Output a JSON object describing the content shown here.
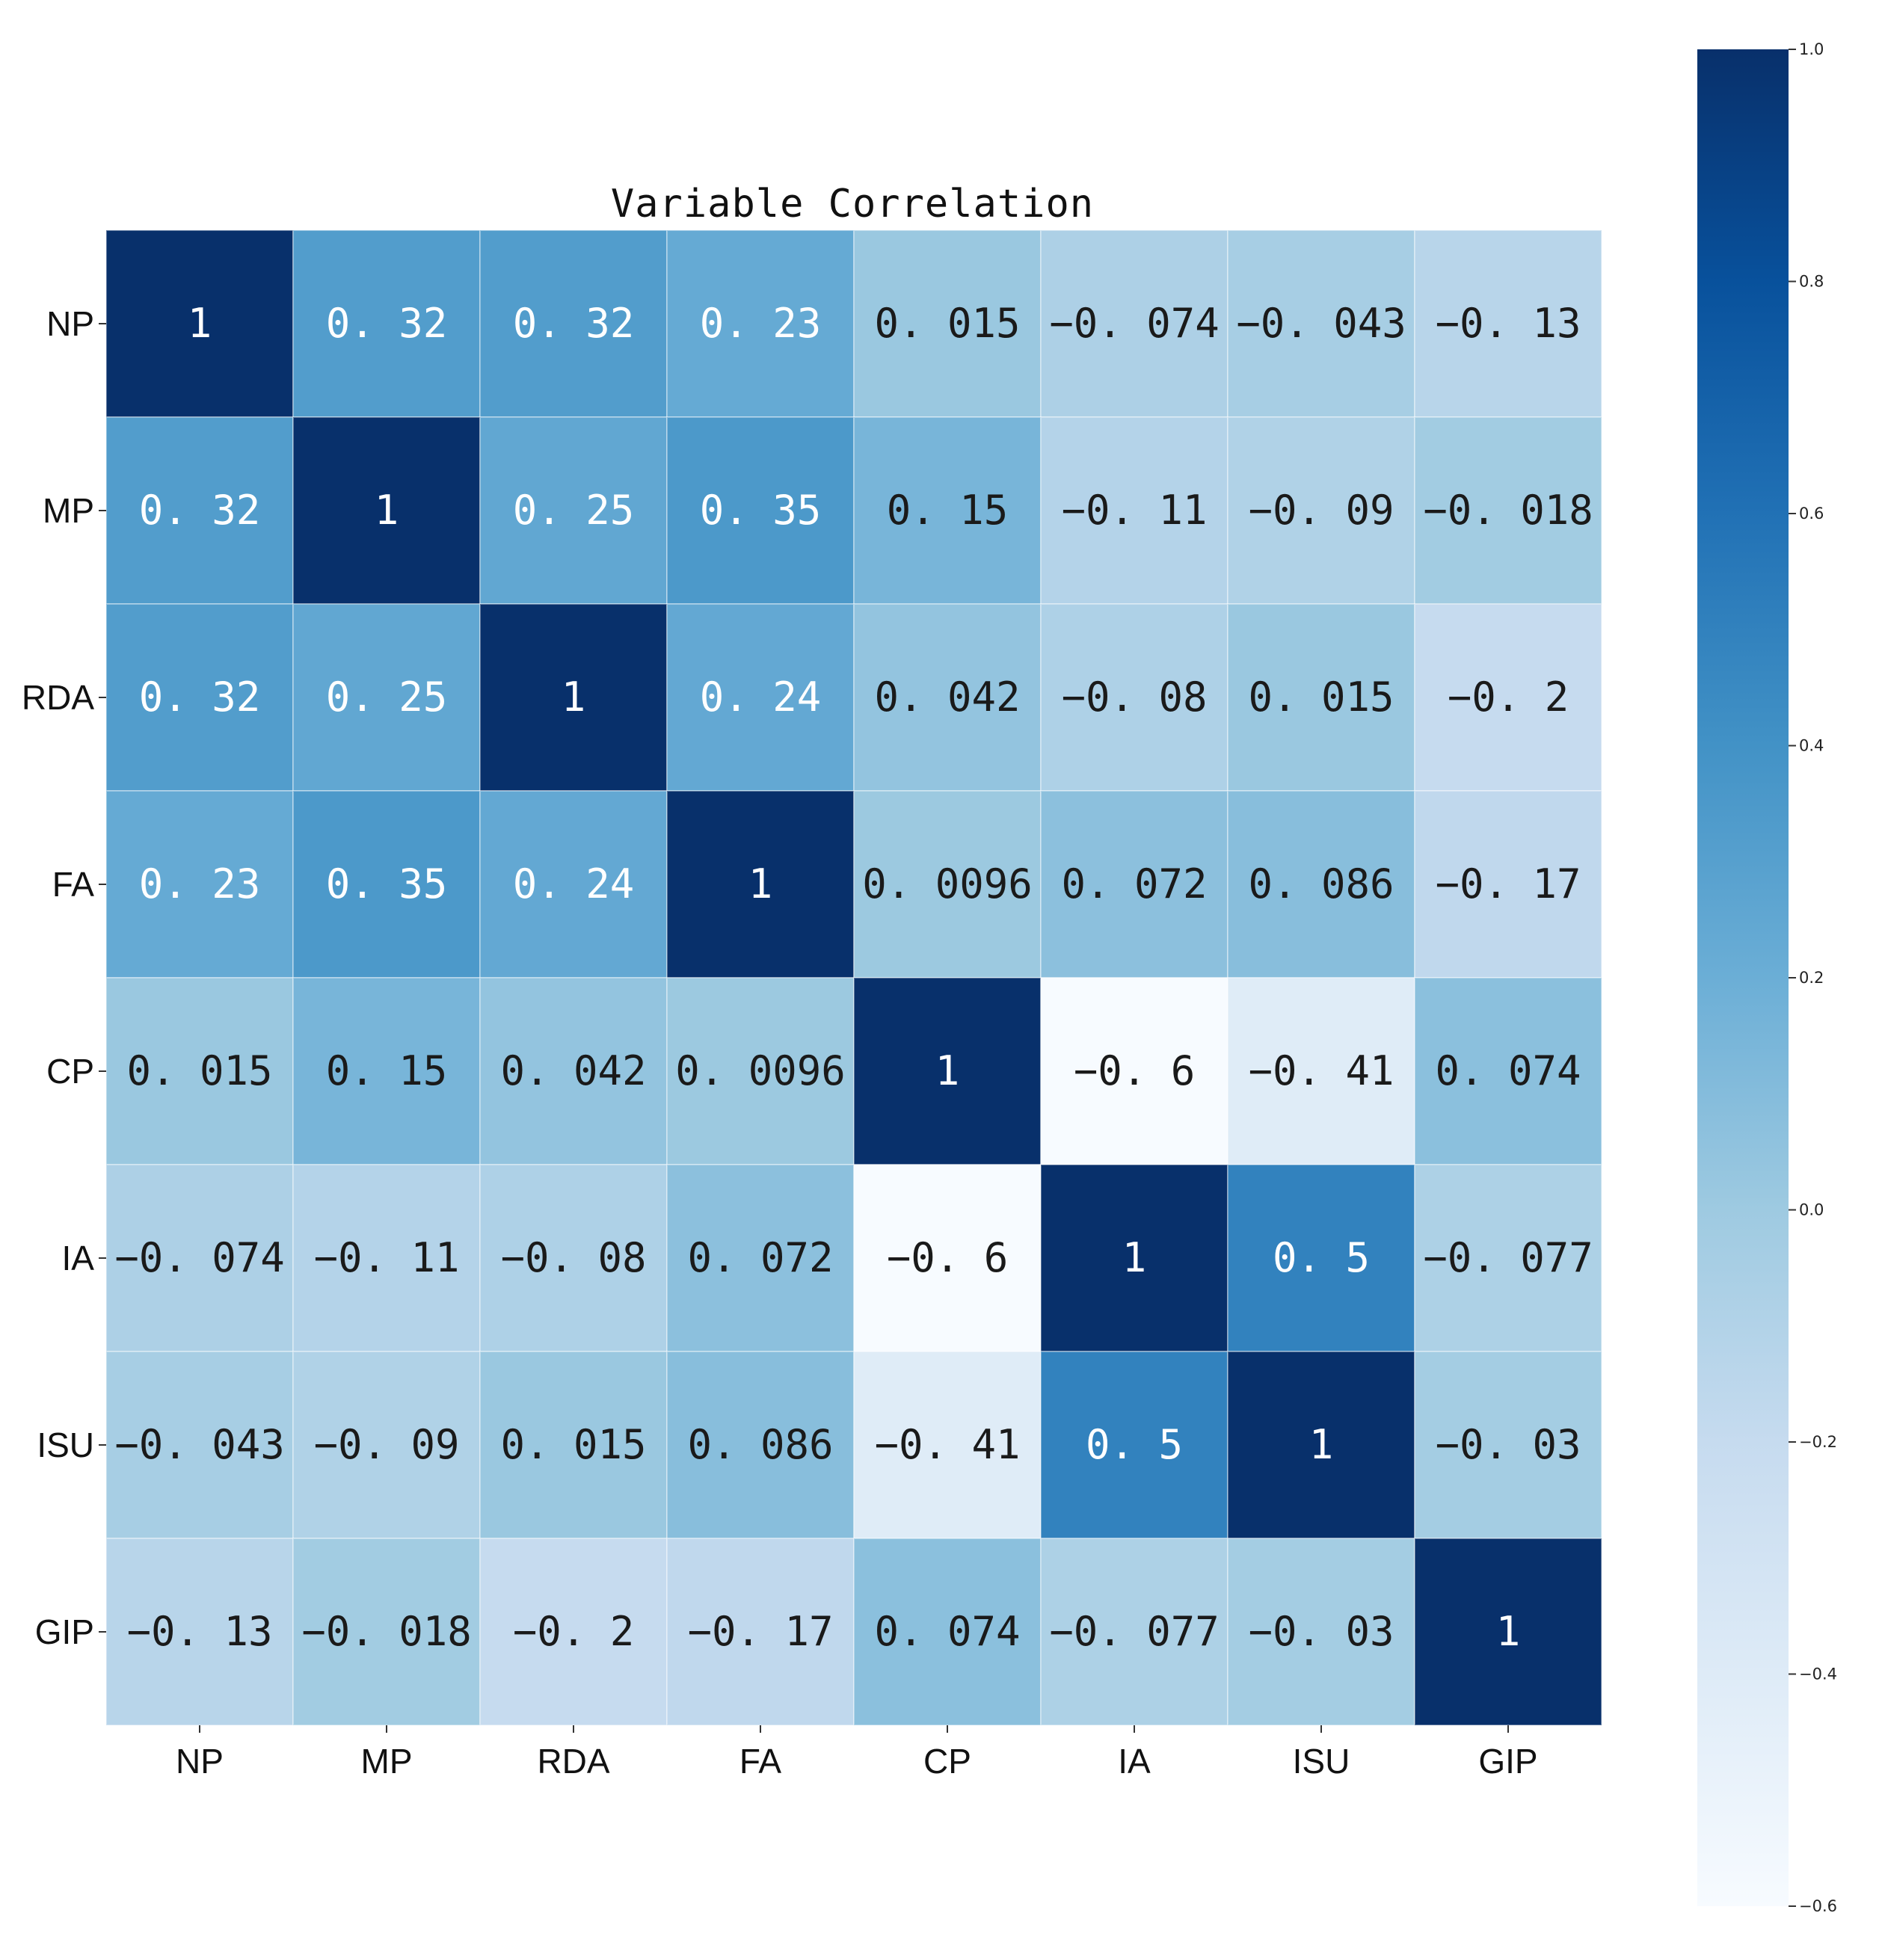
{
  "chart_data": {
    "type": "heatmap",
    "title": "Variable Correlation",
    "row_labels": [
      "NP",
      "MP",
      "RDA",
      "FA",
      "CP",
      "IA",
      "ISU",
      "GIP"
    ],
    "col_labels": [
      "NP",
      "MP",
      "RDA",
      "FA",
      "CP",
      "IA",
      "ISU",
      "GIP"
    ],
    "values": [
      [
        1,
        0.32,
        0.32,
        0.23,
        0.015,
        -0.074,
        -0.043,
        -0.13
      ],
      [
        0.32,
        1,
        0.25,
        0.35,
        0.15,
        -0.11,
        -0.09,
        -0.018
      ],
      [
        0.32,
        0.25,
        1,
        0.24,
        0.042,
        -0.08,
        0.015,
        -0.2
      ],
      [
        0.23,
        0.35,
        0.24,
        1,
        0.0096,
        0.072,
        0.086,
        -0.17
      ],
      [
        0.015,
        0.15,
        0.042,
        0.0096,
        1,
        -0.6,
        -0.41,
        0.074
      ],
      [
        -0.074,
        -0.11,
        -0.08,
        0.072,
        -0.6,
        1,
        0.5,
        -0.077
      ],
      [
        -0.043,
        -0.09,
        0.015,
        0.086,
        -0.41,
        0.5,
        1,
        -0.03
      ],
      [
        -0.13,
        -0.018,
        -0.2,
        -0.17,
        0.074,
        -0.077,
        -0.03,
        1
      ]
    ],
    "value_labels": [
      [
        "1",
        "0. 32",
        "0. 32",
        "0. 23",
        "0. 015",
        "−0. 074",
        "−0. 043",
        "−0. 13"
      ],
      [
        "0. 32",
        "1",
        "0. 25",
        "0. 35",
        "0. 15",
        "−0. 11",
        "−0. 09",
        "−0. 018"
      ],
      [
        "0. 32",
        "0. 25",
        "1",
        "0. 24",
        "0. 042",
        "−0. 08",
        "0. 015",
        "−0. 2"
      ],
      [
        "0. 23",
        "0. 35",
        "0. 24",
        "1",
        "0. 0096",
        "0. 072",
        "0. 086",
        "−0. 17"
      ],
      [
        "0. 015",
        "0. 15",
        "0. 042",
        "0. 0096",
        "1",
        "−0. 6",
        "−0. 41",
        "0. 074"
      ],
      [
        "−0. 074",
        "−0. 11",
        "−0. 08",
        "0. 072",
        "−0. 6",
        "1",
        "0. 5",
        "−0. 077"
      ],
      [
        "−0. 043",
        "−0. 09",
        "0. 015",
        "0. 086",
        "−0. 41",
        "0. 5",
        "1",
        "−0. 03"
      ],
      [
        "−0. 13",
        "−0. 018",
        "−0. 2",
        "−0. 17",
        "0. 074",
        "−0. 077",
        "−0. 03",
        "1"
      ]
    ],
    "colormap": "Blues",
    "vmin": -0.6,
    "vmax": 1.0,
    "colorbar_ticks": [
      1.0,
      0.8,
      0.6,
      0.4,
      0.2,
      0.0,
      -0.2,
      -0.4,
      -0.6
    ],
    "colorbar_tick_labels": [
      "1.0",
      "0.8",
      "0.6",
      "0.4",
      "0.2",
      "0.0",
      "−0.2",
      "−0.4",
      "−0.6"
    ],
    "colorbar_placement": "right",
    "grid": false
  }
}
